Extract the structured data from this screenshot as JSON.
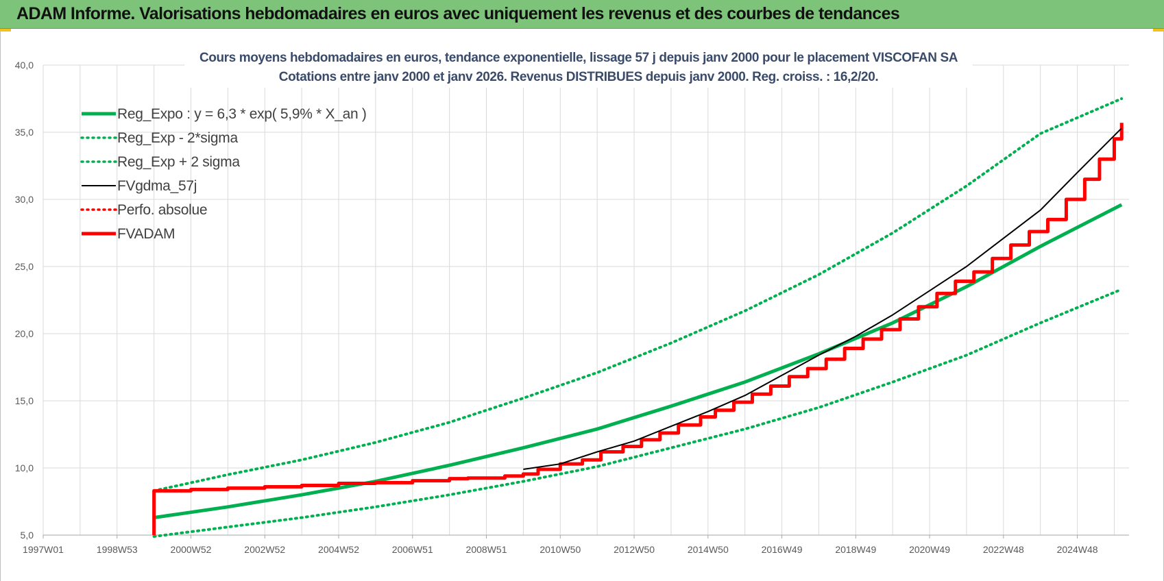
{
  "header": {
    "title": "ADAM Informe. Valorisations hebdomadaires en euros avec uniquement les revenus et des courbes de tendances"
  },
  "chart_data": {
    "type": "line",
    "title": "Cours moyens hebdomadaires en euros, tendance exponentielle, lissage 57 j depuis janv 2000 pour le placement VISCOFAN SA",
    "subtitle": "Cotations entre janv 2000 et janv 2026. Revenus DISTRIBUES depuis janv 2000. Reg. croiss. : 16,2/20.",
    "xlabel": "",
    "ylabel": "",
    "ylim": [
      5,
      40
    ],
    "xlim": [
      1997.0,
      2026.4
    ],
    "y_ticks": [
      "5,0",
      "10,0",
      "15,0",
      "20,0",
      "25,0",
      "30,0",
      "35,0",
      "40,0"
    ],
    "x_ticks": [
      {
        "label": "1997W01",
        "x": 1997.0
      },
      {
        "label": "1998W53",
        "x": 1999.0
      },
      {
        "label": "2000W52",
        "x": 2001.0
      },
      {
        "label": "2002W52",
        "x": 2003.0
      },
      {
        "label": "2004W52",
        "x": 2005.0
      },
      {
        "label": "2006W51",
        "x": 2007.0
      },
      {
        "label": "2008W51",
        "x": 2009.0
      },
      {
        "label": "2010W50",
        "x": 2011.0
      },
      {
        "label": "2012W50",
        "x": 2013.0
      },
      {
        "label": "2014W50",
        "x": 2015.0
      },
      {
        "label": "2016W49",
        "x": 2017.0
      },
      {
        "label": "2018W49",
        "x": 2019.0
      },
      {
        "label": "2020W49",
        "x": 2021.0
      },
      {
        "label": "2022W48",
        "x": 2023.0
      },
      {
        "label": "2024W48",
        "x": 2025.0
      }
    ],
    "grid": true,
    "legend_position": "top-left",
    "series": [
      {
        "name": "Reg_Expo : y = 6,3 * exp( 5,9% *  X_an )",
        "color": "#00b050",
        "style": "solid",
        "width": 5,
        "points": [
          [
            2000.0,
            6.3
          ],
          [
            2002.0,
            7.1
          ],
          [
            2004.0,
            8.0
          ],
          [
            2006.0,
            9.0
          ],
          [
            2008.0,
            10.2
          ],
          [
            2010.0,
            11.5
          ],
          [
            2012.0,
            12.9
          ],
          [
            2014.0,
            14.6
          ],
          [
            2016.0,
            16.4
          ],
          [
            2018.0,
            18.5
          ],
          [
            2020.0,
            20.8
          ],
          [
            2022.0,
            23.5
          ],
          [
            2024.0,
            26.5
          ],
          [
            2026.2,
            29.6
          ]
        ]
      },
      {
        "name": "Reg_Exp - 2*sigma",
        "color": "#00b050",
        "style": "dotted",
        "width": 4,
        "points": [
          [
            2000.0,
            4.9
          ],
          [
            2002.0,
            5.6
          ],
          [
            2004.0,
            6.3
          ],
          [
            2006.0,
            7.1
          ],
          [
            2008.0,
            8.0
          ],
          [
            2010.0,
            9.0
          ],
          [
            2012.0,
            10.1
          ],
          [
            2014.0,
            11.5
          ],
          [
            2016.0,
            12.9
          ],
          [
            2018.0,
            14.5
          ],
          [
            2020.0,
            16.4
          ],
          [
            2022.0,
            18.4
          ],
          [
            2024.0,
            20.8
          ],
          [
            2026.2,
            23.3
          ]
        ]
      },
      {
        "name": "Reg_Exp + 2 sigma",
        "color": "#00b050",
        "style": "dotted",
        "width": 4,
        "points": [
          [
            2000.0,
            8.3
          ],
          [
            2002.0,
            9.5
          ],
          [
            2004.0,
            10.6
          ],
          [
            2006.0,
            11.9
          ],
          [
            2008.0,
            13.4
          ],
          [
            2010.0,
            15.2
          ],
          [
            2012.0,
            17.1
          ],
          [
            2014.0,
            19.3
          ],
          [
            2016.0,
            21.7
          ],
          [
            2018.0,
            24.4
          ],
          [
            2020.0,
            27.5
          ],
          [
            2022.0,
            31.0
          ],
          [
            2024.0,
            34.9
          ],
          [
            2026.2,
            37.5
          ]
        ]
      },
      {
        "name": "FVgdma_57j",
        "color": "#000000",
        "style": "solid",
        "width": 2,
        "points": [
          [
            2010.0,
            9.9
          ],
          [
            2011.0,
            10.3
          ],
          [
            2012.0,
            11.2
          ],
          [
            2013.0,
            12.0
          ],
          [
            2014.0,
            13.1
          ],
          [
            2015.0,
            14.2
          ],
          [
            2016.0,
            15.4
          ],
          [
            2017.0,
            16.9
          ],
          [
            2018.0,
            18.4
          ],
          [
            2019.0,
            19.8
          ],
          [
            2020.0,
            21.4
          ],
          [
            2021.0,
            23.2
          ],
          [
            2022.0,
            25.0
          ],
          [
            2023.0,
            27.1
          ],
          [
            2024.0,
            29.2
          ],
          [
            2025.0,
            32.0
          ],
          [
            2026.2,
            35.3
          ]
        ]
      },
      {
        "name": "Perfo. absolue",
        "color": "#ff0000",
        "style": "dotted",
        "width": 3,
        "points": []
      },
      {
        "name": "FVADAM",
        "color": "#ff0000",
        "style": "solid",
        "width": 5,
        "points": [
          [
            2000.0,
            5.0
          ],
          [
            2000.0,
            8.3
          ],
          [
            2001.0,
            8.4
          ],
          [
            2002.0,
            8.5
          ],
          [
            2003.0,
            8.6
          ],
          [
            2004.0,
            8.7
          ],
          [
            2005.0,
            8.85
          ],
          [
            2006.0,
            8.9
          ],
          [
            2007.0,
            9.05
          ],
          [
            2008.0,
            9.2
          ],
          [
            2008.5,
            9.25
          ],
          [
            2009.5,
            9.4
          ],
          [
            2010.0,
            9.55
          ],
          [
            2010.4,
            9.9
          ],
          [
            2011.0,
            10.3
          ],
          [
            2011.6,
            10.6
          ],
          [
            2012.1,
            11.2
          ],
          [
            2012.7,
            11.6
          ],
          [
            2013.2,
            12.1
          ],
          [
            2013.7,
            12.6
          ],
          [
            2014.2,
            13.2
          ],
          [
            2014.8,
            13.8
          ],
          [
            2015.2,
            14.3
          ],
          [
            2015.7,
            14.9
          ],
          [
            2016.2,
            15.5
          ],
          [
            2016.7,
            16.1
          ],
          [
            2017.2,
            16.8
          ],
          [
            2017.7,
            17.4
          ],
          [
            2018.2,
            18.1
          ],
          [
            2018.7,
            18.9
          ],
          [
            2019.2,
            19.6
          ],
          [
            2019.7,
            20.3
          ],
          [
            2020.2,
            21.1
          ],
          [
            2020.7,
            22.0
          ],
          [
            2021.2,
            23.0
          ],
          [
            2021.7,
            23.9
          ],
          [
            2022.2,
            24.6
          ],
          [
            2022.7,
            25.6
          ],
          [
            2023.2,
            26.6
          ],
          [
            2023.7,
            27.6
          ],
          [
            2024.2,
            28.5
          ],
          [
            2024.7,
            30.0
          ],
          [
            2025.2,
            31.5
          ],
          [
            2025.6,
            33.0
          ],
          [
            2026.0,
            34.5
          ],
          [
            2026.2,
            35.7
          ]
        ]
      }
    ]
  }
}
